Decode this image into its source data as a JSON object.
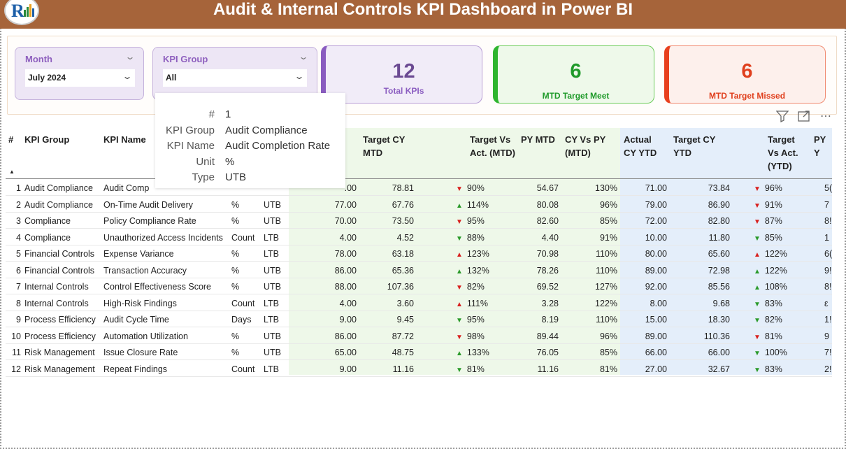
{
  "header": {
    "title": "Audit & Internal Controls KPI Dashboard in Power BI",
    "bar_color": "#a6643a"
  },
  "slicers": {
    "month": {
      "label": "Month",
      "value": "July 2024"
    },
    "kpi_group": {
      "label": "KPI Group",
      "value": "All"
    }
  },
  "cards": {
    "total": {
      "value": "12",
      "label": "Total KPIs",
      "color": "#8a5cc0"
    },
    "meet": {
      "value": "6",
      "label": "MTD Target Meet",
      "color": "#2fb52f"
    },
    "missed": {
      "value": "6",
      "label": "MTD Target Missed",
      "color": "#e8401e"
    }
  },
  "toolbar": {
    "filter_icon": "filter-icon",
    "focus_icon": "focus-mode-icon",
    "more_icon": "more-options-icon"
  },
  "table": {
    "headers": {
      "num": "#",
      "kpi_group": "KPI Group",
      "kpi_name": "KPI Name",
      "target_cy_mtd": "Target CY MTD",
      "tva_mtd": "Target Vs Act. (MTD)",
      "py_mtd": "PY MTD",
      "cy_vs_py_mtd": "CY Vs PY (MTD)",
      "actual_cy_ytd": "Actual CY YTD",
      "target_cy_ytd": "Target CY YTD",
      "tva_ytd": "Target Vs Act. (YTD)",
      "py_ytd": "PY Y"
    },
    "rows": [
      {
        "n": "1",
        "group": "Audit Compliance",
        "name": "Audit Comp",
        "unit": "",
        "type": "",
        "actual_mtd": ".00",
        "target_mtd": "78.81",
        "tva_mtd": "90%",
        "tva_mtd_dir": "down",
        "tva_mtd_color": "red",
        "py_mtd": "54.67",
        "cvp_mtd": "130%",
        "actual_ytd": "71.00",
        "target_ytd": "73.84",
        "tva_ytd": "96%",
        "tva_ytd_dir": "down",
        "tva_ytd_color": "red",
        "py_ytd": "5("
      },
      {
        "n": "2",
        "group": "Audit Compliance",
        "name": "On-Time Audit Delivery",
        "unit": "%",
        "type": "UTB",
        "actual_mtd": "77.00",
        "target_mtd": "67.76",
        "tva_mtd": "114%",
        "tva_mtd_dir": "up",
        "tva_mtd_color": "green",
        "py_mtd": "80.08",
        "cvp_mtd": "96%",
        "actual_ytd": "79.00",
        "target_ytd": "86.90",
        "tva_ytd": "91%",
        "tva_ytd_dir": "down",
        "tva_ytd_color": "red",
        "py_ytd": "7"
      },
      {
        "n": "3",
        "group": "Compliance",
        "name": "Policy Compliance Rate",
        "unit": "%",
        "type": "UTB",
        "actual_mtd": "70.00",
        "target_mtd": "73.50",
        "tva_mtd": "95%",
        "tva_mtd_dir": "down",
        "tva_mtd_color": "red",
        "py_mtd": "82.60",
        "cvp_mtd": "85%",
        "actual_ytd": "72.00",
        "target_ytd": "82.80",
        "tva_ytd": "87%",
        "tva_ytd_dir": "down",
        "tva_ytd_color": "red",
        "py_ytd": "8!"
      },
      {
        "n": "4",
        "group": "Compliance",
        "name": "Unauthorized Access Incidents",
        "unit": "Count",
        "type": "LTB",
        "actual_mtd": "4.00",
        "target_mtd": "4.52",
        "tva_mtd": "88%",
        "tva_mtd_dir": "down",
        "tva_mtd_color": "green",
        "py_mtd": "4.40",
        "cvp_mtd": "91%",
        "actual_ytd": "10.00",
        "target_ytd": "11.80",
        "tva_ytd": "85%",
        "tva_ytd_dir": "down",
        "tva_ytd_color": "green",
        "py_ytd": "1"
      },
      {
        "n": "5",
        "group": "Financial Controls",
        "name": "Expense Variance",
        "unit": "%",
        "type": "LTB",
        "actual_mtd": "78.00",
        "target_mtd": "63.18",
        "tva_mtd": "123%",
        "tva_mtd_dir": "up",
        "tva_mtd_color": "red",
        "py_mtd": "70.98",
        "cvp_mtd": "110%",
        "actual_ytd": "80.00",
        "target_ytd": "65.60",
        "tva_ytd": "122%",
        "tva_ytd_dir": "up",
        "tva_ytd_color": "red",
        "py_ytd": "6("
      },
      {
        "n": "6",
        "group": "Financial Controls",
        "name": "Transaction Accuracy",
        "unit": "%",
        "type": "UTB",
        "actual_mtd": "86.00",
        "target_mtd": "65.36",
        "tva_mtd": "132%",
        "tva_mtd_dir": "up",
        "tva_mtd_color": "green",
        "py_mtd": "78.26",
        "cvp_mtd": "110%",
        "actual_ytd": "89.00",
        "target_ytd": "72.98",
        "tva_ytd": "122%",
        "tva_ytd_dir": "up",
        "tva_ytd_color": "green",
        "py_ytd": "9!"
      },
      {
        "n": "7",
        "group": "Internal Controls",
        "name": "Control Effectiveness Score",
        "unit": "%",
        "type": "UTB",
        "actual_mtd": "88.00",
        "target_mtd": "107.36",
        "tva_mtd": "82%",
        "tva_mtd_dir": "down",
        "tva_mtd_color": "red",
        "py_mtd": "69.52",
        "cvp_mtd": "127%",
        "actual_ytd": "92.00",
        "target_ytd": "85.56",
        "tva_ytd": "108%",
        "tva_ytd_dir": "up",
        "tva_ytd_color": "green",
        "py_ytd": "8!"
      },
      {
        "n": "8",
        "group": "Internal Controls",
        "name": "High-Risk Findings",
        "unit": "Count",
        "type": "LTB",
        "actual_mtd": "4.00",
        "target_mtd": "3.60",
        "tva_mtd": "111%",
        "tva_mtd_dir": "up",
        "tva_mtd_color": "red",
        "py_mtd": "3.28",
        "cvp_mtd": "122%",
        "actual_ytd": "8.00",
        "target_ytd": "9.68",
        "tva_ytd": "83%",
        "tva_ytd_dir": "down",
        "tva_ytd_color": "green",
        "py_ytd": "ε"
      },
      {
        "n": "9",
        "group": "Process Efficiency",
        "name": "Audit Cycle Time",
        "unit": "Days",
        "type": "LTB",
        "actual_mtd": "9.00",
        "target_mtd": "9.45",
        "tva_mtd": "95%",
        "tva_mtd_dir": "down",
        "tva_mtd_color": "green",
        "py_mtd": "8.19",
        "cvp_mtd": "110%",
        "actual_ytd": "15.00",
        "target_ytd": "18.30",
        "tva_ytd": "82%",
        "tva_ytd_dir": "down",
        "tva_ytd_color": "green",
        "py_ytd": "1!"
      },
      {
        "n": "10",
        "group": "Process Efficiency",
        "name": "Automation Utilization",
        "unit": "%",
        "type": "UTB",
        "actual_mtd": "86.00",
        "target_mtd": "87.72",
        "tva_mtd": "98%",
        "tva_mtd_dir": "down",
        "tva_mtd_color": "red",
        "py_mtd": "89.44",
        "cvp_mtd": "96%",
        "actual_ytd": "89.00",
        "target_ytd": "110.36",
        "tva_ytd": "81%",
        "tva_ytd_dir": "down",
        "tva_ytd_color": "red",
        "py_ytd": "9"
      },
      {
        "n": "11",
        "group": "Risk Management",
        "name": "Issue Closure Rate",
        "unit": "%",
        "type": "UTB",
        "actual_mtd": "65.00",
        "target_mtd": "48.75",
        "tva_mtd": "133%",
        "tva_mtd_dir": "up",
        "tva_mtd_color": "green",
        "py_mtd": "76.05",
        "cvp_mtd": "85%",
        "actual_ytd": "66.00",
        "target_ytd": "66.00",
        "tva_ytd": "100%",
        "tva_ytd_dir": "down",
        "tva_ytd_color": "green",
        "py_ytd": "7!"
      },
      {
        "n": "12",
        "group": "Risk Management",
        "name": "Repeat Findings",
        "unit": "Count",
        "type": "LTB",
        "actual_mtd": "9.00",
        "target_mtd": "11.16",
        "tva_mtd": "81%",
        "tva_mtd_dir": "down",
        "tva_mtd_color": "green",
        "py_mtd": "11.16",
        "cvp_mtd": "81%",
        "actual_ytd": "27.00",
        "target_ytd": "32.67",
        "tva_ytd": "83%",
        "tva_ytd_dir": "down",
        "tva_ytd_color": "green",
        "py_ytd": "2!"
      }
    ]
  },
  "tooltip": {
    "rows": [
      {
        "key": "#",
        "value": "1"
      },
      {
        "key": "KPI Group",
        "value": "Audit Compliance"
      },
      {
        "key": "KPI Name",
        "value": "Audit Completion Rate"
      },
      {
        "key": "Unit",
        "value": "%"
      },
      {
        "key": "Type",
        "value": "UTB"
      }
    ]
  }
}
